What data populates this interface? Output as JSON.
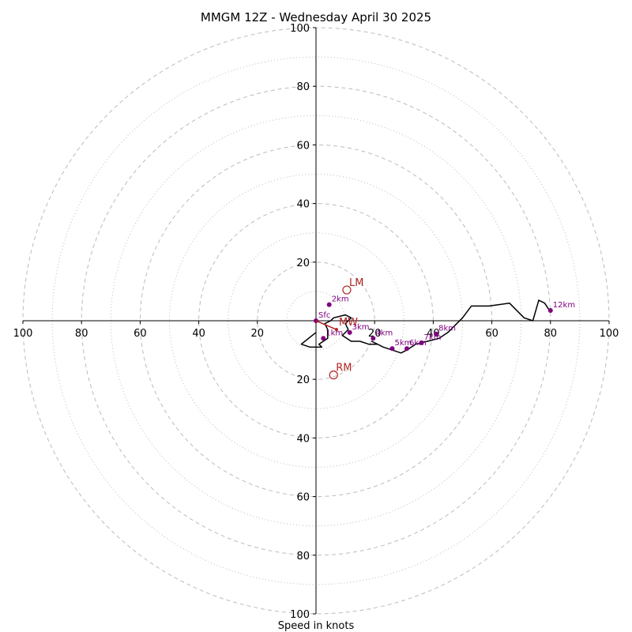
{
  "chart_data": {
    "type": "hodograph",
    "title": "MMGM 12Z - Wednesday April 30 2025",
    "xlabel": "Speed in knots",
    "range": [
      -100,
      100
    ],
    "ring_values": [
      20,
      40,
      60,
      80,
      100
    ],
    "minor_ring_values": [
      10,
      30,
      50,
      70,
      90
    ],
    "tick_labels": {
      "x_left": [
        "100",
        "80",
        "60",
        "40",
        "20"
      ],
      "x_right": [
        "20",
        "40",
        "60",
        "80",
        "100"
      ],
      "y_up": [
        "20",
        "40",
        "60",
        "80",
        "100"
      ],
      "y_down": [
        "20",
        "40",
        "60",
        "80",
        "100"
      ]
    },
    "trace": {
      "u": [
        0,
        -5,
        -2,
        2,
        2,
        1,
        4,
        4,
        3,
        5,
        6,
        10,
        12,
        10,
        11,
        9,
        12,
        15,
        18,
        21,
        19,
        23,
        26,
        29,
        31,
        34,
        38,
        42,
        45,
        50,
        53,
        59,
        66,
        71,
        74,
        76,
        78,
        80
      ],
      "v": [
        -4,
        -8,
        -9,
        -9,
        -9,
        -8,
        -6,
        -3,
        -1,
        0,
        1,
        2,
        1,
        -1,
        -3,
        -5,
        -7,
        -7,
        -8,
        -8,
        -7,
        -9,
        -10,
        -11,
        -10,
        -8,
        -7,
        -6,
        -4,
        1,
        5,
        5,
        6,
        1,
        0,
        7,
        6,
        3
      ]
    },
    "height_markers": [
      {
        "label": "Sfc",
        "u": 0,
        "v": 0
      },
      {
        "label": "1km",
        "u": 2.5,
        "v": -6
      },
      {
        "label": "2km",
        "u": 4.5,
        "v": 5.5
      },
      {
        "label": "3km",
        "u": 11.5,
        "v": -4
      },
      {
        "label": "4km",
        "u": 19.5,
        "v": -6
      },
      {
        "label": "5km",
        "u": 26,
        "v": -9.5
      },
      {
        "label": "6km",
        "u": 31,
        "v": -9.5
      },
      {
        "label": "7km",
        "u": 36,
        "v": -7.5
      },
      {
        "label": "8km",
        "u": 41,
        "v": -4.5
      },
      {
        "label": "12km",
        "u": 80,
        "v": 3.5
      }
    ],
    "motion": [
      {
        "label": "LM",
        "u": 10.5,
        "v": 10.5
      },
      {
        "label": "RM",
        "u": 6,
        "v": -18.5
      },
      {
        "label": "MW",
        "u": 7,
        "v": -3
      }
    ],
    "colors": {
      "trace": "#000000",
      "markers": "#800080",
      "motion": "#b22222",
      "grid": "#bbbbbb",
      "axes": "#000000"
    }
  }
}
